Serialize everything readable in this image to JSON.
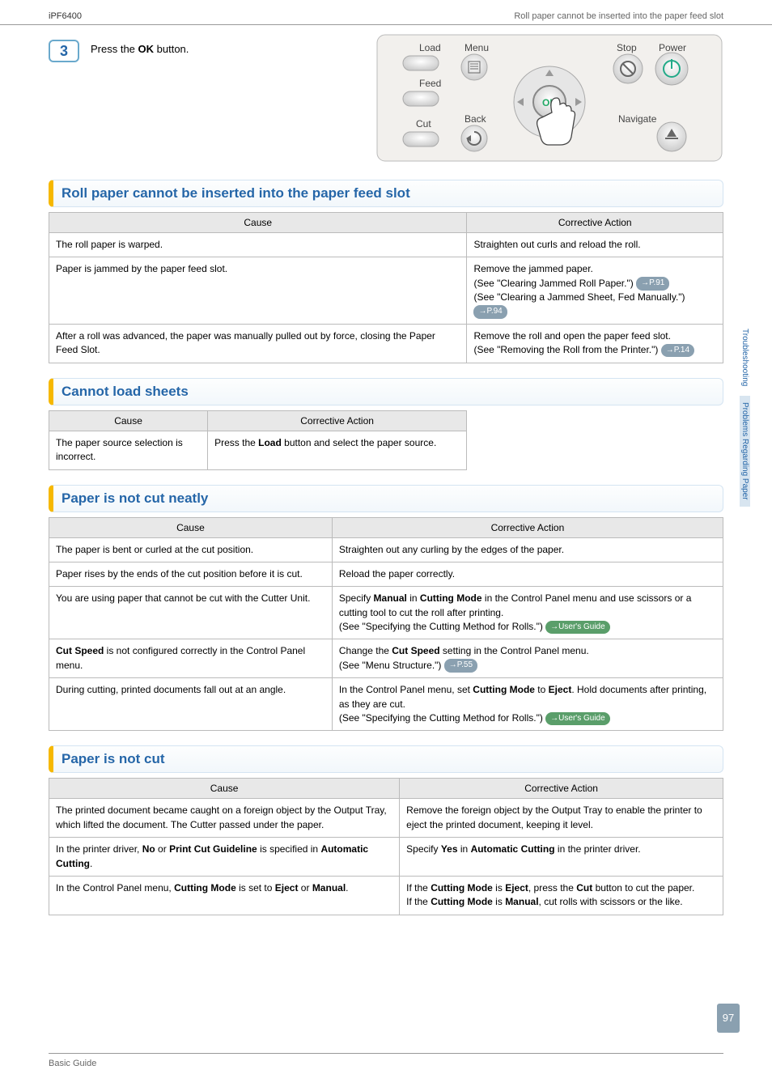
{
  "doc": {
    "model": "iPF6400",
    "breadcrumb_right": "Roll paper cannot be inserted into the paper feed slot",
    "footer_left": "Basic Guide",
    "page_number": "97"
  },
  "step": {
    "number": "3",
    "text_pre": "Press the ",
    "text_bold": "OK",
    "text_post": " button."
  },
  "panel": {
    "labels": {
      "load": "Load",
      "feed": "Feed",
      "cut": "Cut",
      "menu": "Menu",
      "back": "Back",
      "stop": "Stop",
      "power": "Power",
      "navigate": "Navigate"
    }
  },
  "sections": [
    {
      "title": "Roll paper cannot be inserted into the paper feed slot",
      "col_widths": [
        "62%",
        "38%"
      ],
      "headers": [
        "Cause",
        "Corrective Action"
      ],
      "rows": [
        {
          "cause": "The roll paper is warped.",
          "action": [
            {
              "t": "Straighten out curls and reload the roll."
            }
          ]
        },
        {
          "cause": "Paper is jammed by the paper feed slot.",
          "action": [
            {
              "t": "Remove the jammed paper."
            },
            {
              "t": "(See \"Clearing Jammed Roll Paper.\") ",
              "pill": "→P.91"
            },
            {
              "t": "(See \"Clearing a Jammed Sheet, Fed Manually.\") ",
              "pill": "→P.94"
            }
          ]
        },
        {
          "cause": "After a roll was advanced, the paper was manually pulled out by force, closing the Paper Feed Slot.",
          "action": [
            {
              "t": "Remove the roll and open the paper feed slot."
            },
            {
              "t": "(See \"Removing the Roll from the Printer.\") ",
              "pill": "→P.14"
            }
          ]
        }
      ]
    },
    {
      "title": "Cannot load sheets",
      "col_widths": [
        "38%",
        "62%"
      ],
      "table_width": "62%",
      "headers": [
        "Cause",
        "Corrective Action"
      ],
      "rows": [
        {
          "cause": "The paper source selection is incorrect.",
          "action_html": "Press the <b>Load</b> button and select the paper source."
        }
      ]
    },
    {
      "title": "Paper is not cut neatly",
      "col_widths": [
        "42%",
        "58%"
      ],
      "headers": [
        "Cause",
        "Corrective Action"
      ],
      "rows": [
        {
          "cause": "The paper is bent or curled at the cut position.",
          "action": [
            {
              "t": "Straighten out any curling by the edges of the paper."
            }
          ]
        },
        {
          "cause": "Paper rises by the ends of the cut position before it is cut.",
          "action": [
            {
              "t": "Reload the paper correctly."
            }
          ]
        },
        {
          "cause": "You are using paper that cannot be cut with the Cutter Unit.",
          "action": [
            {
              "html": "Specify <b>Manual</b> in <b>Cutting Mode</b> in the Control Panel menu and use scissors or a cutting tool to cut the roll after printing."
            },
            {
              "t": "(See \"Specifying the Cutting Method for Rolls.\") ",
              "pill": "→User's Guide",
              "green": true
            }
          ]
        },
        {
          "cause_html": "<b>Cut Speed</b> is not configured correctly in the Control Panel menu.",
          "action": [
            {
              "html": "Change the <b>Cut Speed</b> setting in the Control Panel menu."
            },
            {
              "t": "(See \"Menu Structure.\") ",
              "pill": "→P.55"
            }
          ]
        },
        {
          "cause": "During cutting, printed documents fall out at an angle.",
          "action": [
            {
              "html": "In the Control Panel menu, set <b>Cutting Mode</b> to <b>Eject</b>. Hold documents after printing, as they are cut."
            },
            {
              "t": "(See \"Specifying the Cutting Method for Rolls.\") ",
              "pill": "→User's Guide",
              "green": true
            }
          ]
        }
      ]
    },
    {
      "title": "Paper is not cut",
      "col_widths": [
        "52%",
        "48%"
      ],
      "headers": [
        "Cause",
        "Corrective Action"
      ],
      "rows": [
        {
          "cause": "The printed document became caught on a foreign object by the Output Tray, which lifted the document. The Cutter passed under the paper.",
          "action": [
            {
              "t": "Remove the foreign object by the Output Tray to enable the printer to eject the printed document, keeping it level."
            }
          ]
        },
        {
          "cause_html": "In the printer driver, <b>No</b> or <b>Print Cut Guideline</b> is specified in <b>Automatic Cutting</b>.",
          "action": [
            {
              "html": "Specify <b>Yes</b> in <b>Automatic Cutting</b> in the printer driver."
            }
          ]
        },
        {
          "cause_html": "In the Control Panel menu, <b>Cutting Mode</b> is set to <b>Eject</b> or <b>Manual</b>.",
          "action": [
            {
              "html": "If the <b>Cutting Mode</b> is <b>Eject</b>, press the <b>Cut</b> button to cut the paper."
            },
            {
              "html": "If the <b>Cutting Mode</b> is <b>Manual</b>, cut rolls with scissors or the like."
            }
          ]
        }
      ]
    }
  ],
  "side_tabs": [
    {
      "label": "Troubleshooting",
      "active": false
    },
    {
      "label": "Problems Regarding Paper",
      "active": true
    }
  ]
}
